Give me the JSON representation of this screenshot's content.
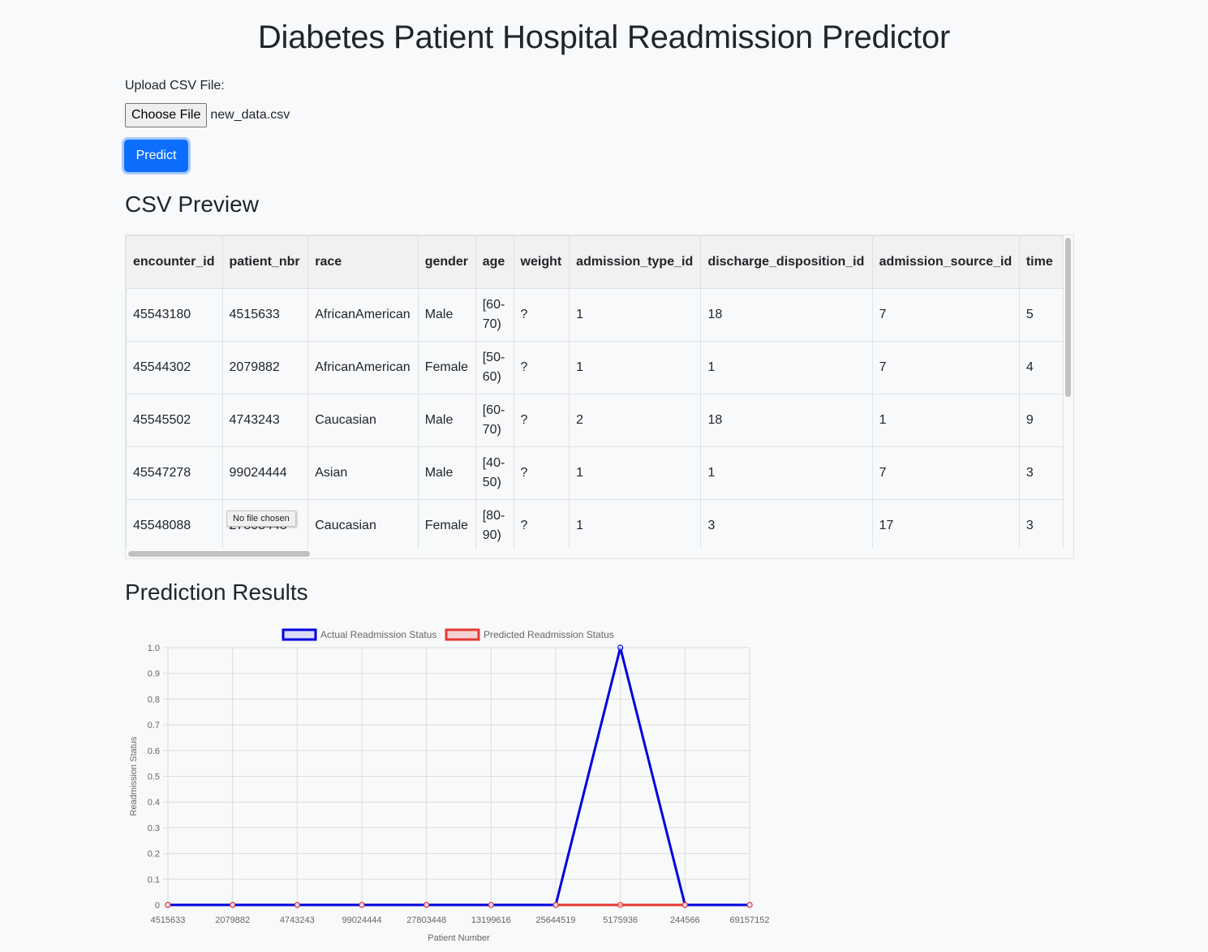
{
  "page": {
    "title": "Diabetes Patient Hospital Readmission Predictor"
  },
  "upload": {
    "label": "Upload CSV File:",
    "choose_button": "Choose File",
    "file_name": "new_data.csv",
    "tooltip": "No file chosen"
  },
  "predict_button": "Predict",
  "preview": {
    "heading": "CSV Preview",
    "columns": [
      "encounter_id",
      "patient_nbr",
      "race",
      "gender",
      "age",
      "weight",
      "admission_type_id",
      "discharge_disposition_id",
      "admission_source_id",
      "time"
    ],
    "rows": [
      [
        "45543180",
        "4515633",
        "AfricanAmerican",
        "Male",
        "[60-70)",
        "?",
        "1",
        "18",
        "7",
        "5"
      ],
      [
        "45544302",
        "2079882",
        "AfricanAmerican",
        "Female",
        "[50-60)",
        "?",
        "1",
        "1",
        "7",
        "4"
      ],
      [
        "45545502",
        "4743243",
        "Caucasian",
        "Male",
        "[60-70)",
        "?",
        "2",
        "18",
        "1",
        "9"
      ],
      [
        "45547278",
        "99024444",
        "Asian",
        "Male",
        "[40-50)",
        "?",
        "1",
        "1",
        "7",
        "3"
      ],
      [
        "45548088",
        "27803448",
        "Caucasian",
        "Female",
        "[80-90)",
        "?",
        "1",
        "3",
        "17",
        "3"
      ]
    ]
  },
  "results": {
    "heading": "Prediction Results"
  },
  "chart_data": {
    "type": "line",
    "categories": [
      "4515633",
      "2079882",
      "4743243",
      "99024444",
      "27803448",
      "13199616",
      "25644519",
      "5175936",
      "244566",
      "69157152"
    ],
    "series": [
      {
        "name": "Actual Readmission Status",
        "color": "#0000dd",
        "values": [
          0,
          0,
          0,
          0,
          0,
          0,
          0,
          1,
          0,
          0
        ]
      },
      {
        "name": "Predicted Readmission Status",
        "color": "#e53935",
        "values": [
          0,
          0,
          0,
          0,
          0,
          0,
          0,
          0,
          0,
          0
        ]
      }
    ],
    "xlabel": "Patient Number",
    "ylabel": "Readmission Status",
    "ylim": [
      0,
      1
    ],
    "yticks": [
      "0",
      "0.1",
      "0.2",
      "0.3",
      "0.4",
      "0.5",
      "0.6",
      "0.7",
      "0.8",
      "0.9",
      "1.0"
    ],
    "grid": true,
    "legend": "top-center"
  }
}
